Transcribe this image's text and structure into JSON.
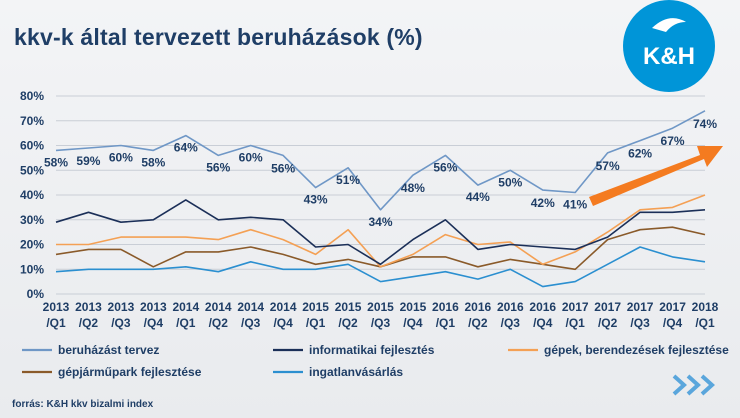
{
  "title": "kkv-k által tervezett beruházások (%)",
  "source": "forrás: K&H kkv bizalmi index",
  "logo": {
    "text": "K&H",
    "color": "#0095d8",
    "icon": "kh-logo"
  },
  "decor": {
    "chevrons_icon": "chevron-arrows-icon",
    "trend_arrow_icon": "orange-trend-arrow-icon",
    "arrow_color": "#f47b20"
  },
  "chart_data": {
    "type": "line",
    "ylim": [
      0,
      80
    ],
    "yticks": [
      "0%",
      "10%",
      "20%",
      "30%",
      "40%",
      "50%",
      "60%",
      "70%",
      "80%"
    ],
    "grid": true,
    "legend_position": "bottom",
    "categories": [
      [
        "2013",
        "/Q1"
      ],
      [
        "2013",
        "/Q2"
      ],
      [
        "2013",
        "/Q3"
      ],
      [
        "2013",
        "/Q4"
      ],
      [
        "2014",
        "/Q1"
      ],
      [
        "2014",
        "/Q2"
      ],
      [
        "2014",
        "/Q3"
      ],
      [
        "2014",
        "/Q4"
      ],
      [
        "2015",
        "/Q1"
      ],
      [
        "2015",
        "/Q2"
      ],
      [
        "2015",
        "/Q3"
      ],
      [
        "2015",
        "/Q4"
      ],
      [
        "2016",
        "/Q1"
      ],
      [
        "2016",
        "/Q2"
      ],
      [
        "2016",
        "/Q3"
      ],
      [
        "2016",
        "/Q4"
      ],
      [
        "2017",
        "/Q1"
      ],
      [
        "2017",
        "/Q2"
      ],
      [
        "2017",
        "/Q3"
      ],
      [
        "2017",
        "/Q4"
      ],
      [
        "2018",
        "/Q1"
      ]
    ],
    "series": [
      {
        "name": "beruházást  tervez",
        "color": "#6f97c6",
        "width": 1.6,
        "values": [
          58,
          59,
          60,
          58,
          64,
          56,
          60,
          56,
          43,
          51,
          34,
          48,
          56,
          44,
          50,
          42,
          41,
          57,
          62,
          67,
          74
        ],
        "labels": [
          "58%",
          "59%",
          "60%",
          "58%",
          "64%",
          "56%",
          "60%",
          "56%",
          "43%",
          "51%",
          "34%",
          "48%",
          "56%",
          "44%",
          "50%",
          "42%",
          "41%",
          "57%",
          "62%",
          "67%",
          "74%"
        ]
      },
      {
        "name": "informatikai fejlesztés",
        "color": "#1b2f58",
        "width": 1.6,
        "values": [
          29,
          33,
          29,
          30,
          38,
          30,
          31,
          30,
          19,
          20,
          12,
          22,
          30,
          18,
          20,
          19,
          18,
          23,
          33,
          33,
          34
        ]
      },
      {
        "name": "gépek, berendezések fejlesztése",
        "color": "#f4a054",
        "width": 1.6,
        "values": [
          20,
          20,
          23,
          23,
          23,
          22,
          26,
          22,
          16,
          26,
          11,
          16,
          24,
          20,
          21,
          12,
          17,
          25,
          34,
          35,
          40
        ]
      },
      {
        "name": "gépjárműpark fejlesztése",
        "color": "#8a5a2a",
        "width": 1.6,
        "values": [
          16,
          18,
          18,
          11,
          17,
          17,
          19,
          16,
          12,
          14,
          11,
          15,
          15,
          11,
          14,
          12,
          10,
          22,
          26,
          27,
          24
        ]
      },
      {
        "name": "ingatlanvásárlás",
        "color": "#2b8fd0",
        "width": 1.6,
        "values": [
          9,
          10,
          10,
          10,
          11,
          9,
          13,
          10,
          10,
          12,
          5,
          7,
          9,
          6,
          10,
          3,
          5,
          12,
          19,
          15,
          13
        ]
      }
    ]
  }
}
